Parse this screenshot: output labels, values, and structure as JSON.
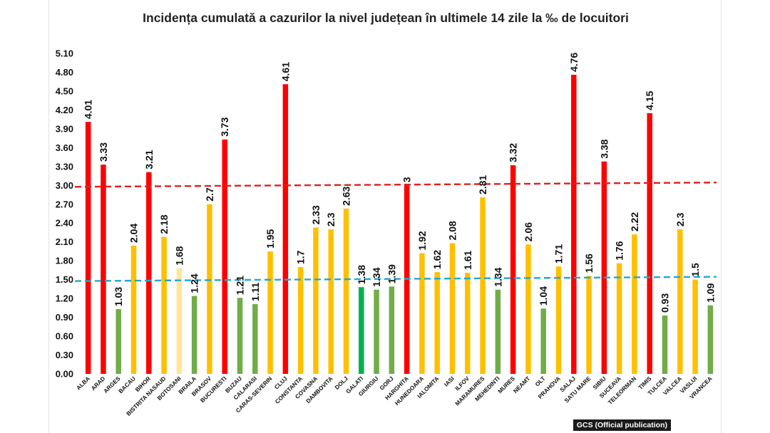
{
  "credit": "GCS (Official publication)",
  "colors": {
    "red": "#ff0000",
    "yellow": "#ffc000",
    "green": "#70ad47",
    "dark_green": "#00b050",
    "light_yellow": "#ffe699",
    "red_line": "#e02020",
    "blue_line": "#1fa8d6"
  },
  "chart_data": {
    "type": "bar",
    "title": "Incidența cumulată a cazurilor la nivel județean în ultimele 14 zile la ‰ de locuitori",
    "ylim": [
      0,
      5.1
    ],
    "yticks": [
      "0.00",
      "0.30",
      "0.60",
      "0.90",
      "1.20",
      "1.50",
      "1.80",
      "2.10",
      "2.40",
      "2.70",
      "3.00",
      "3.30",
      "3.60",
      "3.90",
      "4.20",
      "4.50",
      "4.80",
      "5.10"
    ],
    "categories": [
      "ALBA",
      "ARAD",
      "ARGES",
      "BACAU",
      "BIHOR",
      "BISTRITA NASAUD",
      "BOTOSANI",
      "BRAILA",
      "BRASOV",
      "BUCURESTI",
      "BUZAU",
      "CALARASI",
      "CARAS-SEVERIN",
      "CLUJ",
      "CONSTANTA",
      "COVASNA",
      "DAMBOVITA",
      "DOLJ",
      "GALATI",
      "GIURGIU",
      "GORJ",
      "HARGHITA",
      "HUNEDOARA",
      "IALOMITA",
      "IASI",
      "ILFOV",
      "MARAMURES",
      "MEHEDINTI",
      "MURES",
      "NEAMT",
      "OLT",
      "PRAHOVA",
      "SALAJ",
      "SATU MARE",
      "SIBIU",
      "SUCEAVA",
      "TELEORMAN",
      "TIMIS",
      "TULCEA",
      "VALCEA",
      "VASLUI",
      "VRANCEA"
    ],
    "values": [
      4.01,
      3.33,
      1.03,
      2.04,
      3.21,
      2.18,
      1.68,
      1.24,
      2.7,
      3.73,
      1.21,
      1.11,
      1.95,
      4.61,
      1.7,
      2.33,
      2.3,
      2.63,
      1.38,
      1.34,
      1.39,
      3,
      1.92,
      1.62,
      2.08,
      1.61,
      2.81,
      1.34,
      3.32,
      2.06,
      1.04,
      1.71,
      4.76,
      1.56,
      3.38,
      1.76,
      2.22,
      4.15,
      0.93,
      2.3,
      1.5,
      1.09
    ],
    "labels": [
      "4.01",
      "3.33",
      "1.03",
      "2.04",
      "3.21",
      "2.18",
      "1.68",
      "1.24",
      "2.7",
      "3.73",
      "1.21",
      "1.11",
      "1.95",
      "4.61",
      "1.7",
      "2.33",
      "2.3",
      "2.63",
      "1.38",
      "1.34",
      "1.39",
      "3",
      "1.92",
      "1.62",
      "2.08",
      "1.61",
      "2.81",
      "1.34",
      "3.32",
      "2.06",
      "1.04",
      "1.71",
      "4.76",
      "1.56",
      "3.38",
      "1.76",
      "2.22",
      "4.15",
      "0.93",
      "2.3",
      "1.5",
      "1.09"
    ],
    "bar_colors": [
      "red",
      "red",
      "green",
      "yellow",
      "red",
      "yellow",
      "light_yellow",
      "green",
      "yellow",
      "red",
      "green",
      "green",
      "yellow",
      "red",
      "yellow",
      "yellow",
      "yellow",
      "yellow",
      "dark_green",
      "green",
      "green",
      "red",
      "yellow",
      "yellow",
      "yellow",
      "yellow",
      "yellow",
      "green",
      "red",
      "yellow",
      "green",
      "yellow",
      "red",
      "yellow",
      "red",
      "yellow",
      "yellow",
      "red",
      "green",
      "yellow",
      "yellow",
      "green"
    ],
    "reference_lines": [
      {
        "value": 3.0,
        "style": "dashed",
        "color": "red_line"
      },
      {
        "value": 1.5,
        "style": "dashed",
        "color": "blue_line"
      }
    ],
    "grid": false,
    "legend": "none"
  }
}
